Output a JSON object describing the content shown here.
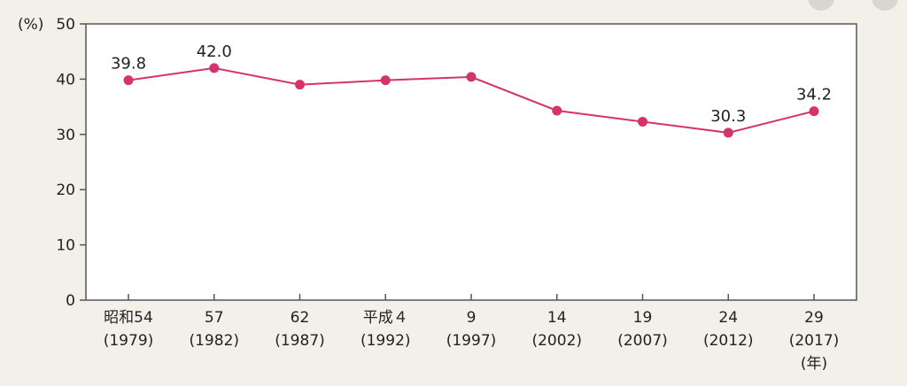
{
  "chart_data": {
    "type": "line",
    "title": "",
    "y_unit": "(%)",
    "x_unit": "(年)",
    "ylim": [
      0,
      50
    ],
    "yticks": [
      0,
      10,
      20,
      30,
      40,
      50
    ],
    "grid": false,
    "legend": "none",
    "categories": [
      {
        "era": "昭和54",
        "year": "(1979)"
      },
      {
        "era": "57",
        "year": "(1982)"
      },
      {
        "era": "62",
        "year": "(1987)"
      },
      {
        "era": "平成４",
        "year": "(1992)"
      },
      {
        "era": "9",
        "year": "(1997)"
      },
      {
        "era": "14",
        "year": "(2002)"
      },
      {
        "era": "19",
        "year": "(2007)"
      },
      {
        "era": "24",
        "year": "(2012)"
      },
      {
        "era": "29",
        "year": "(2017)"
      }
    ],
    "series": [
      {
        "values": [
          39.8,
          42.0,
          39.0,
          39.8,
          40.4,
          34.3,
          32.3,
          30.3,
          34.2
        ],
        "color": "#d6336c"
      }
    ],
    "data_labels": [
      {
        "index": 0,
        "text": "39.8"
      },
      {
        "index": 1,
        "text": "42.0"
      },
      {
        "index": 7,
        "text": "30.3"
      },
      {
        "index": 8,
        "text": "34.2"
      }
    ]
  }
}
